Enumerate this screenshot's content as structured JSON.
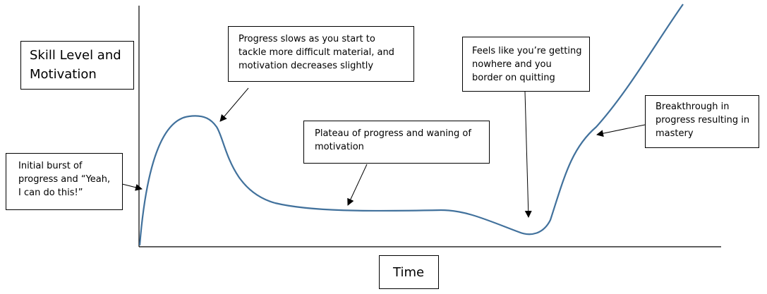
{
  "y_axis_label": [
    "Skill Level and",
    "Motivation"
  ],
  "x_axis_label": "Time",
  "annotations": {
    "initial_burst": [
      "Initial burst of",
      "progress and “Yeah,",
      "I can do this!”"
    ],
    "progress_slows": [
      "Progress slows as you start to",
      "tackle more difficult material, and",
      "motivation decreases slightly"
    ],
    "plateau": [
      "Plateau of progress and waning of",
      "motivation"
    ],
    "nowhere": [
      "Feels like you’re getting",
      "nowhere and you",
      "border on quitting"
    ],
    "breakthrough": [
      "Breakthrough in",
      "progress resulting in",
      "mastery"
    ]
  },
  "colors": {
    "curve": "#41719c",
    "axis": "#000000",
    "border": "#000000",
    "text": "#000000"
  }
}
